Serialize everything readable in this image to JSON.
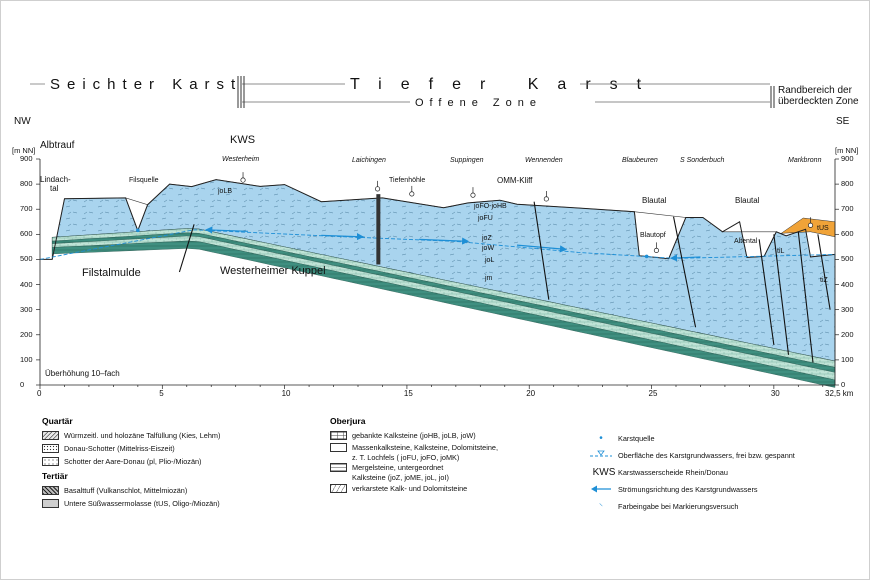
{
  "header": {
    "left_zone": "Seichter Karst",
    "middle_zone": "Tiefer Karst",
    "sub_zone": "Offene Zone",
    "right_zone_line1": "Randbereich der",
    "right_zone_line2": "überdeckten Zone",
    "dir_left": "NW",
    "dir_right": "SE"
  },
  "axes": {
    "y_unit_left": "[m NN]",
    "y_unit_right": "[m NN]",
    "y_ticks": [
      "900",
      "800",
      "700",
      "600",
      "500",
      "400",
      "300",
      "200",
      "100",
      "0"
    ],
    "x_ticks": [
      "0",
      "5",
      "10",
      "15",
      "20",
      "25",
      "30"
    ],
    "x_end": "32,5 km",
    "exaggeration": "Überhöhung 10–fach"
  },
  "chart_data": {
    "type": "geological cross-section",
    "x_range_km": [
      0,
      32.5
    ],
    "y_range_m": [
      0,
      900
    ],
    "surface_profile": [
      [
        0,
        500
      ],
      [
        0.5,
        500
      ],
      [
        1,
        742
      ],
      [
        3.5,
        745
      ],
      [
        4,
        615
      ],
      [
        4.4,
        718
      ],
      [
        5.3,
        800
      ],
      [
        6.2,
        790
      ],
      [
        7.2,
        818
      ],
      [
        9,
        791
      ],
      [
        10,
        798
      ],
      [
        11.5,
        730
      ],
      [
        14,
        745
      ],
      [
        16.5,
        706
      ],
      [
        17.5,
        725
      ],
      [
        18.8,
        736
      ],
      [
        19.5,
        720
      ],
      [
        22,
        705
      ],
      [
        24.3,
        690
      ],
      [
        24.5,
        515
      ],
      [
        25.7,
        503
      ],
      [
        26.4,
        667
      ],
      [
        27.1,
        667
      ],
      [
        27.9,
        610
      ],
      [
        28.6,
        650
      ],
      [
        28.9,
        508
      ],
      [
        29.6,
        512
      ],
      [
        30.1,
        610
      ],
      [
        30.5,
        594
      ],
      [
        31.3,
        620
      ],
      [
        31.5,
        510
      ],
      [
        32.5,
        520
      ]
    ],
    "water_table": [
      [
        0,
        500
      ],
      [
        6.3,
        618
      ],
      [
        12,
        592
      ],
      [
        17,
        572
      ],
      [
        22,
        528
      ],
      [
        26,
        504
      ],
      [
        32.5,
        520
      ]
    ]
  },
  "section_labels": {
    "albtrauf": "Albtrauf",
    "kws": "KWS",
    "lindachtal_1": "Lindach-",
    "lindachtal_2": "tal",
    "filsquelle": "Filsquelle",
    "westerheim": "Westerheim",
    "laichingen": "Laichingen",
    "tiefenhoehle": "Tiefenhöhle",
    "suppingen": "Suppingen",
    "wennenden": "Wennenden",
    "omm_kliff": "OMM-Kliff",
    "blaubeuren": "Blaubeuren",
    "s_sonderbuch": "S Sonderbuch",
    "markbronn": "Markbronn",
    "blautal_1": "Blautal",
    "blautal_2": "Blautal",
    "blautopf": "Blautopf",
    "altental": "Altental",
    "filstalmulde": "Filstalmulde",
    "westerheimer_kuppel": "Westerheimer Kuppel",
    "joLB": "joLB",
    "joFO_joHB": "joFO-joHB",
    "joFU": "joFU",
    "joZ": "joZ",
    "joW": "joW",
    "joL": "joL",
    "jm": "jm",
    "tUS": "tUS",
    "tiL": "tiL",
    "tiZ": "tiZ"
  },
  "legend": {
    "quartaer": {
      "title": "Quartär",
      "items": [
        "Würmzeitl. und holozäne Talfüllung (Kies, Lehm)",
        "Donau-Schotter (Mittelriss-Eiszeit)",
        "Schotter der Aare-Donau (pl, Plio-/Miozän)"
      ]
    },
    "tertiaer": {
      "title": "Tertiär",
      "items": [
        "Basalttuff (Vulkanschlot, Mittelmiozän)",
        "Untere Süßwassermolasse (tUS, Oligo-/Miozän)"
      ]
    },
    "oberjura": {
      "title": "Oberjura",
      "items": [
        "gebankte Kalksteine (joHB, joLB, joW)",
        "Massenkalksteine, Kalksteine, Dolomitsteine,",
        "z. T. Lochfels ( joFU, joFO, joMK)",
        "Mergelsteine, untergeordnet",
        "Kalksteine (joZ, joME, joL, joI)",
        "verkarstete Kalk- und Dolomitsteine"
      ]
    },
    "symbols": {
      "items": [
        "Karstquelle",
        "Oberfläche des Karstgrundwassers, frei bzw. gespannt",
        "Karstwasserscheide Rhein/Donau",
        "Strömungsrichtung des Karstgrundwassers",
        "Farbeingabe bei Markierungsversuch"
      ],
      "kws_abbrev": "KWS"
    }
  },
  "colors": {
    "karst_blue": "#a9d4ee",
    "marl_green_dark": "#3f8f80",
    "marl_green_light": "#bfe3d6",
    "tus_orange": "#f0a338",
    "flow_arrow": "#1e8fd6"
  }
}
